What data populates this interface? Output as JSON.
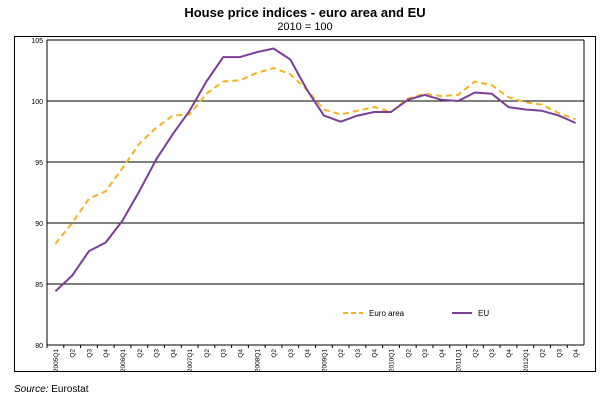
{
  "chart_data": {
    "type": "line",
    "title": "House price indices - euro area and EU",
    "subtitle": "2010 = 100",
    "xlabel": "",
    "ylabel": "",
    "ylim": [
      80,
      105
    ],
    "yticks": [
      80,
      85,
      90,
      95,
      100,
      105
    ],
    "grid": true,
    "legend_position": "inside-bottom-right",
    "categories": [
      "2005Q1",
      "Q2",
      "Q3",
      "Q4",
      "2006Q1",
      "Q2",
      "Q3",
      "Q4",
      "2007Q1",
      "Q2",
      "Q3",
      "Q4",
      "2008Q1",
      "Q2",
      "Q3",
      "Q4",
      "2009Q1",
      "Q2",
      "Q3",
      "Q4",
      "2010Q1",
      "Q2",
      "Q3",
      "Q4",
      "2011Q1",
      "Q2",
      "Q3",
      "Q4",
      "2012Q1",
      "Q2",
      "Q3",
      "Q4"
    ],
    "series": [
      {
        "name": "Euro area",
        "color": "#f5b323",
        "dash": true,
        "values": [
          88.3,
          90.0,
          92.0,
          92.6,
          94.5,
          96.5,
          97.8,
          98.8,
          98.9,
          100.6,
          101.6,
          101.7,
          102.3,
          102.7,
          102.2,
          100.9,
          99.3,
          98.9,
          99.2,
          99.5,
          99.1,
          100.2,
          100.6,
          100.4,
          100.5,
          101.6,
          101.3,
          100.3,
          99.9,
          99.7,
          99.0,
          98.5
        ]
      },
      {
        "name": "EU",
        "color": "#7b3f98",
        "dash": false,
        "values": [
          84.4,
          85.7,
          87.7,
          88.4,
          90.2,
          92.6,
          95.2,
          97.3,
          99.2,
          101.6,
          103.6,
          103.6,
          104.0,
          104.3,
          103.4,
          100.9,
          98.8,
          98.3,
          98.8,
          99.1,
          99.1,
          100.1,
          100.5,
          100.1,
          100.0,
          100.7,
          100.6,
          99.5,
          99.3,
          99.2,
          98.8,
          98.2
        ]
      }
    ]
  },
  "source": {
    "label": "Source:",
    "text": " Eurostat"
  }
}
